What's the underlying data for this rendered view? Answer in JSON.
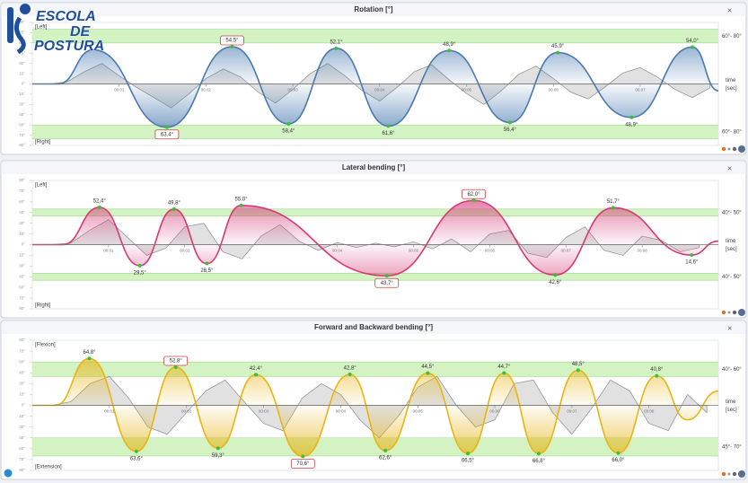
{
  "logo": {
    "lines": [
      "ESCOLA",
      "DE",
      "POSTURA"
    ]
  },
  "chart_data": [
    {
      "type": "line",
      "title": "Rotation [°]",
      "top_label": "[Left]",
      "bottom_label": "[Right]",
      "x_label": "time",
      "x_unit": "[sec]",
      "xlim": [
        0,
        7.9
      ],
      "ylim": [
        -90,
        90
      ],
      "xticks": [
        {
          "value": 1,
          "label": "00:01"
        },
        {
          "value": 2,
          "label": "00:02"
        },
        {
          "value": 3,
          "label": "00:03"
        },
        {
          "value": 4,
          "label": "00:04"
        },
        {
          "value": 5,
          "label": "00:05"
        },
        {
          "value": 6,
          "label": "00:06"
        },
        {
          "value": 7,
          "label": "00:07"
        }
      ],
      "yticks": [
        {
          "value": 90,
          "label": "90°"
        },
        {
          "value": 75,
          "label": "75°"
        },
        {
          "value": 60,
          "label": "60°"
        },
        {
          "value": 45,
          "label": "45°"
        },
        {
          "value": 30,
          "label": "30°"
        },
        {
          "value": 15,
          "label": "15°"
        },
        {
          "value": 0,
          "label": "0°"
        },
        {
          "value": -15,
          "label": "15°"
        },
        {
          "value": -30,
          "label": "30°"
        },
        {
          "value": -45,
          "label": "45°"
        },
        {
          "value": -60,
          "label": "60°"
        },
        {
          "value": -75,
          "label": "75°"
        },
        {
          "value": -90,
          "label": "90°"
        }
      ],
      "bands": [
        {
          "range": [
            60,
            80
          ],
          "label": "60°- 80°"
        },
        {
          "range": [
            -80,
            -60
          ],
          "label": "60°- 80°"
        }
      ],
      "band_color": "#d3f3c3",
      "series": [
        {
          "color": "#4a7ab0",
          "boxed_labels": [
            3,
            4
          ],
          "x": [
            0,
            0.3,
            0.7,
            1.55,
            2.3,
            2.95,
            3.5,
            4.1,
            4.8,
            5.5,
            6.05,
            6.9,
            7.6,
            7.9
          ],
          "values": [
            0,
            0,
            50,
            -63.4,
            54.5,
            -58.4,
            52.1,
            -61.6,
            48.9,
            -56.4,
            45.9,
            -48.9,
            54.0,
            -10
          ],
          "value_labels": [
            null,
            null,
            null,
            "63,4°",
            "54,5°",
            "58,4°",
            "52,1°",
            "61,6°",
            "48,9°",
            "56,4°",
            "45,9°",
            "48,9°",
            "54,0°",
            null
          ]
        },
        {
          "color": "#8c8c8c",
          "x": [
            0.2,
            0.4,
            0.6,
            0.8,
            1.0,
            1.2,
            1.4,
            1.6,
            1.8,
            2.0,
            2.2,
            2.4,
            2.6,
            2.8,
            3.0,
            3.2,
            3.4,
            3.6,
            3.8,
            4.0,
            4.2,
            4.4,
            4.6,
            4.8,
            5.0,
            5.2,
            5.4,
            5.6,
            5.8,
            6.0,
            6.2,
            6.4,
            6.6,
            6.8,
            7.0,
            7.2,
            7.4,
            7.6,
            7.8
          ],
          "values": [
            0,
            3,
            18,
            30,
            12,
            -5,
            -20,
            -35,
            -15,
            8,
            22,
            10,
            -12,
            -28,
            -8,
            15,
            30,
            12,
            -10,
            -25,
            -5,
            18,
            28,
            6,
            -14,
            -30,
            -10,
            14,
            26,
            8,
            -12,
            -22,
            -4,
            16,
            24,
            10,
            -8,
            -20,
            -6
          ]
        }
      ]
    },
    {
      "type": "line",
      "title": "Lateral bending [°]",
      "top_label": "[Left]",
      "bottom_label": "[Right]",
      "x_label": "time",
      "x_unit": "[sec]",
      "xlim": [
        0,
        9
      ],
      "ylim": [
        -90,
        90
      ],
      "xticks": [
        {
          "value": 1,
          "label": "00:01"
        },
        {
          "value": 2,
          "label": "00:02"
        },
        {
          "value": 4,
          "label": "00:04"
        },
        {
          "value": 5,
          "label": "00:05"
        },
        {
          "value": 6,
          "label": "00:06"
        },
        {
          "value": 7,
          "label": "00:07"
        },
        {
          "value": 8,
          "label": "00:08"
        }
      ],
      "yticks": [
        {
          "value": 90,
          "label": "90°"
        },
        {
          "value": 75,
          "label": "75°"
        },
        {
          "value": 60,
          "label": "60°"
        },
        {
          "value": 45,
          "label": "45°"
        },
        {
          "value": 30,
          "label": "30°"
        },
        {
          "value": 15,
          "label": "15°"
        },
        {
          "value": 0,
          "label": "0°"
        },
        {
          "value": -15,
          "label": "15°"
        },
        {
          "value": -30,
          "label": "30°"
        },
        {
          "value": -45,
          "label": "45°"
        },
        {
          "value": -60,
          "label": "60°"
        },
        {
          "value": -75,
          "label": "75°"
        },
        {
          "value": -90,
          "label": "90°"
        }
      ],
      "bands": [
        {
          "range": [
            40,
            50
          ],
          "label": "40°- 50°"
        },
        {
          "range": [
            -50,
            -40
          ],
          "label": "40°- 50°"
        }
      ],
      "band_color": "#d3f3c3",
      "series": [
        {
          "color": "#d63a75",
          "boxed_labels": [
            7,
            8
          ],
          "x": [
            0,
            0.4,
            0.88,
            1.41,
            1.86,
            2.29,
            2.74,
            4.65,
            5.79,
            6.86,
            7.62,
            8.65,
            9.0
          ],
          "values": [
            0,
            0,
            52.4,
            -29.5,
            49.8,
            -26.5,
            55.0,
            -43.7,
            62.0,
            -42.6,
            51.7,
            -14.6,
            5
          ],
          "value_labels": [
            null,
            null,
            "52,4°",
            "29,5°",
            "49,8°",
            "26,5°",
            "55,0°",
            "43,7°",
            "62,0°",
            "42,6°",
            "51,7°",
            "14,6°",
            null
          ]
        },
        {
          "color": "#8c8c8c",
          "x": [
            0.25,
            0.5,
            0.75,
            1.0,
            1.25,
            1.5,
            1.75,
            2.0,
            2.25,
            2.5,
            2.75,
            3.0,
            3.25,
            3.5,
            3.75,
            4.0,
            4.25,
            4.5,
            4.75,
            5.0,
            5.25,
            5.5,
            5.75,
            6.0,
            6.25,
            6.5,
            6.75,
            7.0,
            7.25,
            7.5,
            7.75,
            8.0,
            8.25,
            8.5,
            8.75
          ],
          "values": [
            0,
            2,
            20,
            35,
            10,
            -15,
            -5,
            25,
            30,
            -10,
            -20,
            12,
            28,
            5,
            -8,
            3,
            -4,
            2,
            -3,
            4,
            -6,
            8,
            -10,
            15,
            20,
            -12,
            -18,
            10,
            25,
            -8,
            -15,
            12,
            6,
            -10,
            -4
          ]
        }
      ]
    },
    {
      "type": "line",
      "title": "Forward and Backward bending [°]",
      "top_label": "[Flexion]",
      "bottom_label": "[Extension]",
      "x_label": "time",
      "x_unit": "[sec]",
      "xlim": [
        0,
        8.9
      ],
      "ylim": [
        -90,
        90
      ],
      "xticks": [
        {
          "value": 1,
          "label": "00:01"
        },
        {
          "value": 2,
          "label": "00:02"
        },
        {
          "value": 3,
          "label": "00:03"
        },
        {
          "value": 4,
          "label": "00:04"
        },
        {
          "value": 5,
          "label": "00:05"
        },
        {
          "value": 6,
          "label": "00:06"
        },
        {
          "value": 7,
          "label": "00:07"
        },
        {
          "value": 8,
          "label": "00:08"
        }
      ],
      "yticks": [
        {
          "value": 90,
          "label": "90°"
        },
        {
          "value": 75,
          "label": "75°"
        },
        {
          "value": 60,
          "label": "60°"
        },
        {
          "value": 45,
          "label": "45°"
        },
        {
          "value": 30,
          "label": "30°"
        },
        {
          "value": 15,
          "label": "15°"
        },
        {
          "value": 0,
          "label": "0°"
        },
        {
          "value": -15,
          "label": "15°"
        },
        {
          "value": -30,
          "label": "30°"
        },
        {
          "value": -45,
          "label": "45°"
        },
        {
          "value": -60,
          "label": "60°"
        },
        {
          "value": -75,
          "label": "75°"
        },
        {
          "value": -90,
          "label": "90°"
        }
      ],
      "bands": [
        {
          "range": [
            40,
            60
          ],
          "label": "40°- 60°"
        },
        {
          "range": [
            -70,
            -45
          ],
          "label": "45°- 70°"
        }
      ],
      "band_color": "#d3f3c3",
      "series": [
        {
          "color": "#e8b416",
          "boxed_labels": [
            4,
            7
          ],
          "x": [
            0,
            0.3,
            0.74,
            1.35,
            1.86,
            2.41,
            2.9,
            3.51,
            4.12,
            4.58,
            5.13,
            5.65,
            6.12,
            6.57,
            7.08,
            7.6,
            8.1,
            8.5,
            8.9
          ],
          "values": [
            0,
            0,
            64.8,
            -63.6,
            52.8,
            -59.3,
            42.4,
            -70.6,
            42.8,
            -62.6,
            44.5,
            -66.5,
            44.7,
            -66.8,
            48.5,
            -66.0,
            40.8,
            -20,
            20
          ],
          "value_labels": [
            null,
            null,
            "64,8°",
            "63,6°",
            "52,8°",
            "59,3°",
            "42,4°",
            "70,6°",
            "42,8°",
            "62,6°",
            "44,5°",
            "66,5°",
            "44,7°",
            "66,8°",
            "48,5°",
            "66,0°",
            "40,8°",
            null,
            null
          ]
        },
        {
          "color": "#8c8c8c",
          "x": [
            0.25,
            0.5,
            0.75,
            1.0,
            1.25,
            1.5,
            1.75,
            2.0,
            2.25,
            2.5,
            2.75,
            3.0,
            3.25,
            3.5,
            3.75,
            4.0,
            4.25,
            4.5,
            4.75,
            5.0,
            5.25,
            5.5,
            5.75,
            6.0,
            6.25,
            6.5,
            6.75,
            7.0,
            7.25,
            7.5,
            7.75,
            8.0,
            8.25,
            8.5,
            8.75
          ],
          "values": [
            0,
            5,
            30,
            40,
            10,
            -30,
            -40,
            -10,
            20,
            35,
            5,
            -25,
            -35,
            10,
            30,
            15,
            -20,
            -45,
            -15,
            25,
            40,
            0,
            -30,
            -20,
            30,
            35,
            -10,
            -40,
            -5,
            35,
            20,
            -25,
            -35,
            15,
            -10
          ]
        }
      ]
    }
  ]
}
